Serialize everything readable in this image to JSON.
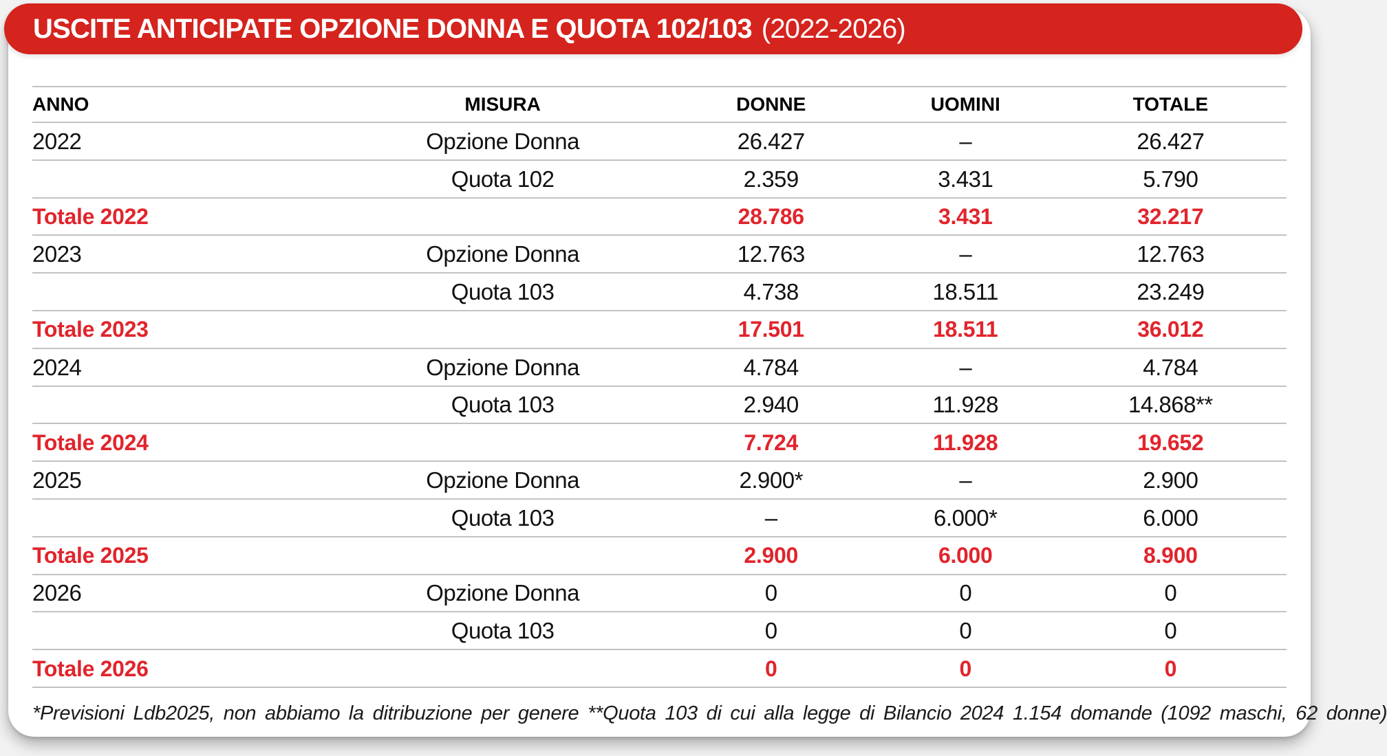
{
  "header": {
    "title_bold": "USCITE ANTICIPATE OPZIONE DONNA E QUOTA 102/103",
    "title_period": "(2022-2026)"
  },
  "colors": {
    "banner_red": "#d5231d",
    "total_text_red": "#e1242c",
    "grid_line_gray": "#c2c2c2"
  },
  "chart_data": {
    "type": "table",
    "title": "USCITE ANTICIPATE OPZIONE DONNA E QUOTA 102/103 (2022-2026)",
    "columns": [
      "ANNO",
      "MISURA",
      "DONNE",
      "UOMINI",
      "TOTALE"
    ],
    "rows": [
      {
        "kind": "data",
        "cells": [
          "2022",
          "Opzione Donna",
          "26.427",
          "–",
          "26.427"
        ]
      },
      {
        "kind": "data",
        "cells": [
          "",
          "Quota 102",
          "2.359",
          "3.431",
          "5.790"
        ]
      },
      {
        "kind": "total",
        "cells": [
          "Totale 2022",
          "",
          "28.786",
          "3.431",
          "32.217"
        ]
      },
      {
        "kind": "data",
        "cells": [
          "2023",
          "Opzione Donna",
          "12.763",
          "–",
          "12.763"
        ]
      },
      {
        "kind": "data",
        "cells": [
          "",
          "Quota 103",
          "4.738",
          "18.511",
          "23.249"
        ]
      },
      {
        "kind": "total",
        "cells": [
          "Totale 2023",
          "",
          "17.501",
          "18.511",
          "36.012"
        ]
      },
      {
        "kind": "data",
        "cells": [
          "2024",
          "Opzione Donna",
          "4.784",
          "–",
          "4.784"
        ]
      },
      {
        "kind": "data",
        "cells": [
          "",
          "Quota 103",
          "2.940",
          "11.928",
          "14.868**"
        ]
      },
      {
        "kind": "total",
        "cells": [
          "Totale 2024",
          "",
          "7.724",
          "11.928",
          "19.652"
        ]
      },
      {
        "kind": "data",
        "cells": [
          "2025",
          "Opzione Donna",
          "2.900*",
          "–",
          "2.900"
        ]
      },
      {
        "kind": "data",
        "cells": [
          "",
          "Quota 103",
          "–",
          "6.000*",
          "6.000"
        ]
      },
      {
        "kind": "total",
        "cells": [
          "Totale 2025",
          "",
          "2.900",
          "6.000",
          "8.900"
        ]
      },
      {
        "kind": "data",
        "cells": [
          "2026",
          "Opzione Donna",
          "0",
          "0",
          "0"
        ]
      },
      {
        "kind": "data",
        "cells": [
          "",
          "Quota 103",
          "0",
          "0",
          "0"
        ]
      },
      {
        "kind": "total",
        "cells": [
          "Totale 2026",
          "",
          "0",
          "0",
          "0"
        ]
      }
    ],
    "footnote": "*Previsioni Ldb2025, non abbiamo la ditribuzione per genere  **Quota 103 di cui alla legge di Bilancio 2024 1.154 domande (1092 maschi, 62 donne)"
  }
}
